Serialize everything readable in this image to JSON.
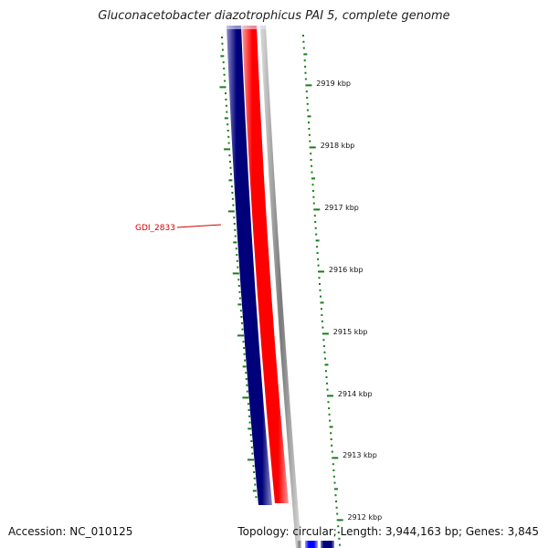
{
  "title": "Gluconacetobacter diazotrophicus PAI 5, complete genome",
  "footer": {
    "accession": "Accession: NC_010125",
    "topology": "Topology: circular; Length: 3,944,163 bp; Genes: 3,845"
  },
  "ticks": [
    {
      "label": "2919 kbp",
      "kbp": 2919
    },
    {
      "label": "2918 kbp",
      "kbp": 2918
    },
    {
      "label": "2917 kbp",
      "kbp": 2917
    },
    {
      "label": "2916 kbp",
      "kbp": 2916
    },
    {
      "label": "2915 kbp",
      "kbp": 2915
    },
    {
      "label": "2914 kbp",
      "kbp": 2914
    },
    {
      "label": "2913 kbp",
      "kbp": 2913
    },
    {
      "label": "2912 kbp",
      "kbp": 2912
    }
  ],
  "gene_label": {
    "text": "GDI_2833",
    "color": "#cc0000"
  },
  "colors": {
    "forward_strand": "#00007a",
    "reverse_strand": "#ff0000",
    "backbone": "#808080",
    "ticks": "#1a7a1a",
    "blue_feature": "#0000ff"
  }
}
